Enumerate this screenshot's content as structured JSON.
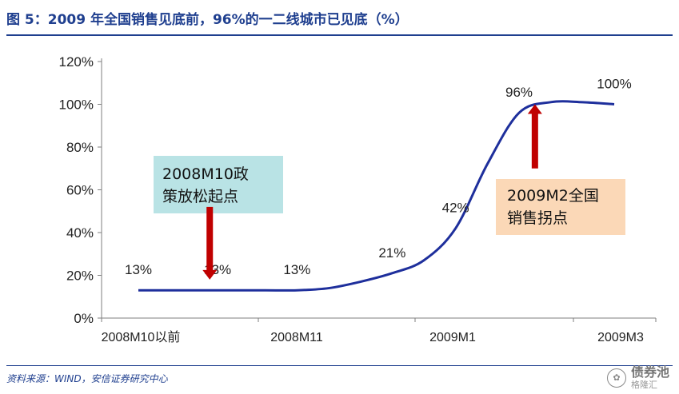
{
  "title": "图 5：2009 年全国销售见底前，96%的一二线城市已见底（%）",
  "source": "资料来源：WIND，安信证券研究中心",
  "watermark": {
    "name": "债券池",
    "sub": "格隆汇"
  },
  "chart_data": {
    "type": "line",
    "title": "2009 年全国销售见底前，96%的一二线城市已见底（%）",
    "categories": [
      "2008M10以前",
      "2008M11",
      "2009M1",
      "2009M3"
    ],
    "x": [
      0,
      0.2,
      0.4,
      0.6,
      0.8,
      1.0,
      1.2,
      1.4,
      1.6,
      1.8,
      2.0,
      2.2,
      2.4,
      2.6,
      2.8,
      3.0
    ],
    "series": [
      {
        "values": [
          13,
          13,
          13,
          13,
          13,
          13,
          14,
          17,
          21,
          27,
          42,
          72,
          96,
          101,
          101,
          100
        ],
        "color": "#1e2f9c"
      }
    ],
    "data_labels": [
      {
        "text": "13%",
        "x": 0.0,
        "y": 13
      },
      {
        "text": "13%",
        "x": 0.5,
        "y": 13
      },
      {
        "text": "13%",
        "x": 1.0,
        "y": 13
      },
      {
        "text": "21%",
        "x": 1.6,
        "y": 21
      },
      {
        "text": "42%",
        "x": 2.0,
        "y": 42
      },
      {
        "text": "96%",
        "x": 2.4,
        "y": 96
      },
      {
        "text": "100%",
        "x": 3.0,
        "y": 100
      }
    ],
    "yticks": [
      "0%",
      "20%",
      "40%",
      "60%",
      "80%",
      "100%",
      "120%"
    ],
    "ylim": [
      0,
      120
    ],
    "xlim": [
      0,
      3
    ],
    "grid": false,
    "annotations": [
      {
        "text": [
          "2008M10政",
          "策放松起点"
        ],
        "fill": "#b9e3e5",
        "arrow": "down",
        "x": 0.45,
        "arrow_from": 52,
        "arrow_to": 18
      },
      {
        "text": [
          "2009M2全国",
          "销售拐点"
        ],
        "fill": "#fbd8b7",
        "arrow": "up",
        "x": 2.5,
        "arrow_from": 70,
        "arrow_to": 100
      }
    ],
    "arrow_color": "#c00000"
  }
}
